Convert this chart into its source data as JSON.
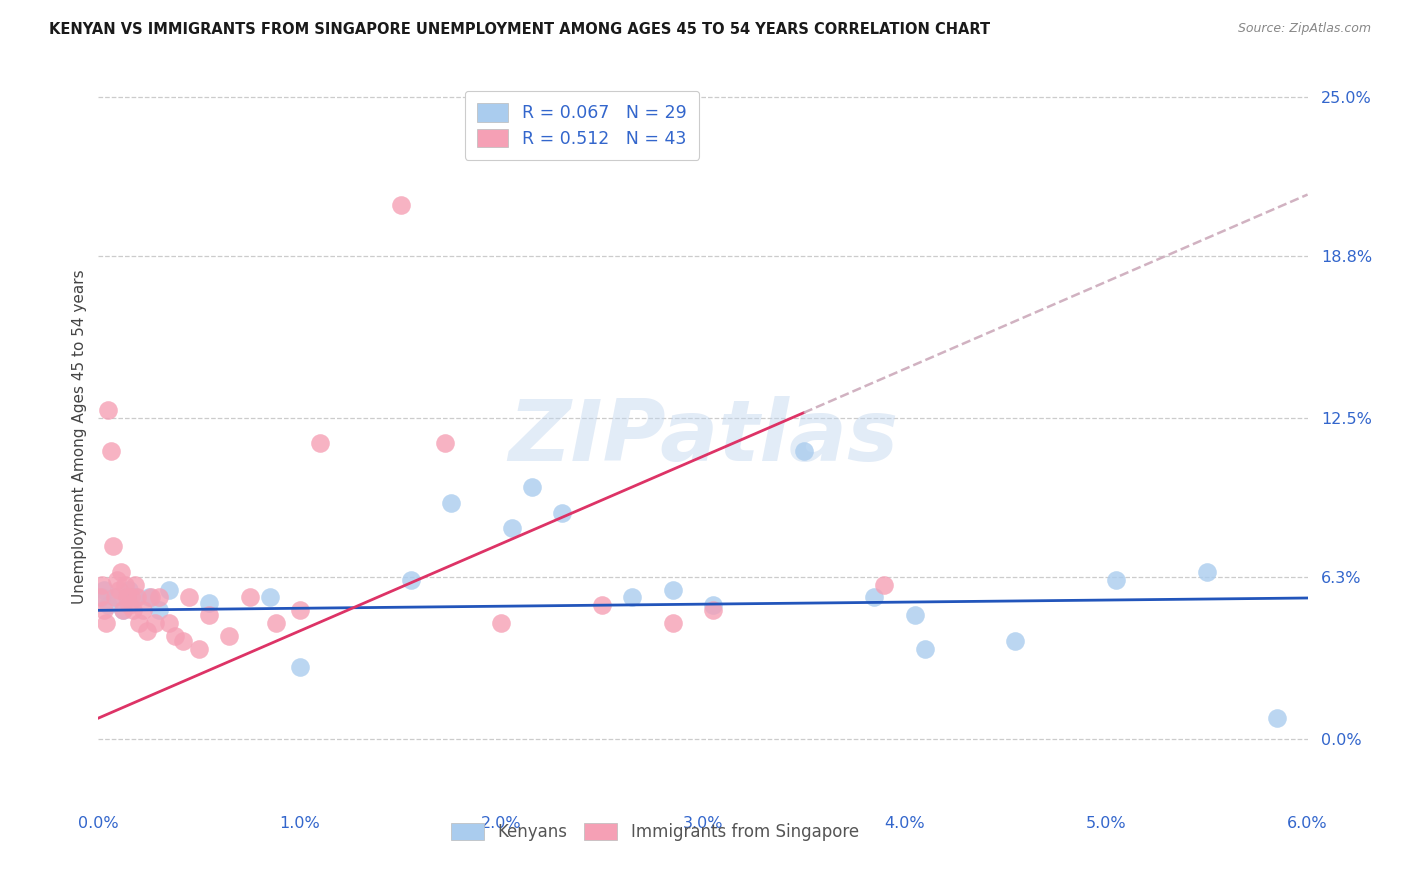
{
  "title": "KENYAN VS IMMIGRANTS FROM SINGAPORE UNEMPLOYMENT AMONG AGES 45 TO 54 YEARS CORRELATION CHART",
  "source": "Source: ZipAtlas.com",
  "ylabel": "Unemployment Among Ages 45 to 54 years",
  "watermark": "ZIPatlas",
  "legend_r_kenyan": "0.067",
  "legend_n_kenyan": "29",
  "legend_r_singapore": "0.512",
  "legend_n_singapore": "43",
  "kenyan_color": "#aaccee",
  "singapore_color": "#f5a0b5",
  "kenyan_line_color": "#2255bb",
  "singapore_line_color": "#dd3366",
  "dashed_line_color": "#ccaabb",
  "xlim": [
    0.0,
    6.0
  ],
  "ylim": [
    -2.5,
    26.0
  ],
  "xticks": [
    0.0,
    1.0,
    2.0,
    3.0,
    4.0,
    5.0,
    6.0
  ],
  "xtick_labels": [
    "0.0%",
    "1.0%",
    "2.0%",
    "3.0%",
    "4.0%",
    "5.0%",
    "6.0%"
  ],
  "yticks": [
    0.0,
    6.3,
    12.5,
    18.8,
    25.0
  ],
  "ytick_labels": [
    "0.0%",
    "6.3%",
    "12.5%",
    "18.8%",
    "25.0%"
  ],
  "background_color": "#ffffff",
  "grid_color": "#cccccc",
  "title_color": "#1a1a1a",
  "source_color": "#888888",
  "axis_tick_color": "#3366cc",
  "ylabel_color": "#444444",
  "kenyan_x": [
    0.02,
    0.03,
    0.05,
    0.08,
    0.12,
    0.15,
    0.18,
    0.25,
    0.3,
    0.35,
    0.55,
    0.85,
    1.0,
    1.55,
    1.75,
    2.05,
    2.15,
    2.3,
    2.65,
    2.85,
    3.05,
    3.5,
    3.85,
    4.05,
    4.1,
    4.55,
    5.05,
    5.5,
    5.85
  ],
  "kenyan_y": [
    5.5,
    5.8,
    5.2,
    5.5,
    5.0,
    5.8,
    5.5,
    5.5,
    5.0,
    5.8,
    5.3,
    5.5,
    2.8,
    6.2,
    9.2,
    8.2,
    9.8,
    8.8,
    5.5,
    5.8,
    5.2,
    11.2,
    5.5,
    4.8,
    3.5,
    3.8,
    6.2,
    6.5,
    0.8
  ],
  "singapore_x": [
    0.01,
    0.02,
    0.03,
    0.04,
    0.05,
    0.06,
    0.07,
    0.08,
    0.09,
    0.1,
    0.11,
    0.12,
    0.13,
    0.14,
    0.15,
    0.16,
    0.17,
    0.18,
    0.19,
    0.2,
    0.22,
    0.24,
    0.26,
    0.28,
    0.3,
    0.35,
    0.38,
    0.42,
    0.45,
    0.5,
    0.55,
    0.65,
    0.75,
    0.88,
    1.0,
    1.1,
    1.5,
    1.72,
    2.0,
    2.5,
    2.85,
    3.05,
    3.9
  ],
  "singapore_y": [
    5.5,
    6.0,
    5.0,
    4.5,
    12.8,
    11.2,
    7.5,
    5.5,
    6.2,
    5.8,
    6.5,
    5.0,
    6.0,
    5.5,
    5.2,
    5.5,
    5.0,
    6.0,
    5.5,
    4.5,
    5.0,
    4.2,
    5.5,
    4.5,
    5.5,
    4.5,
    4.0,
    3.8,
    5.5,
    3.5,
    4.8,
    4.0,
    5.5,
    4.5,
    5.0,
    11.5,
    20.8,
    11.5,
    4.5,
    5.2,
    4.5,
    5.0,
    6.0
  ]
}
